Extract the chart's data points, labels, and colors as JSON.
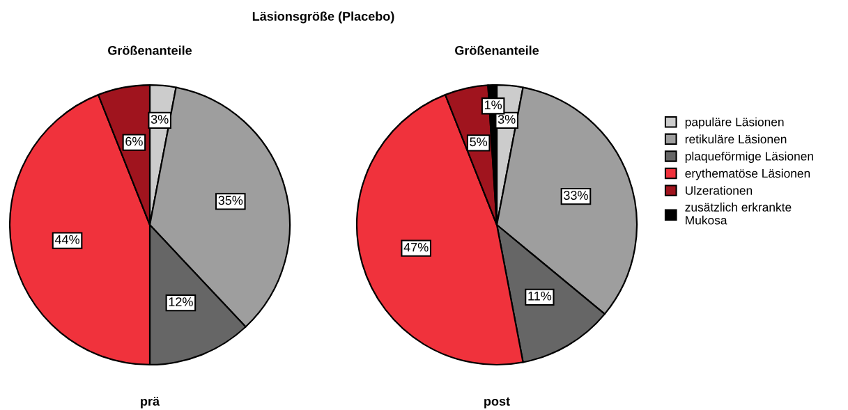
{
  "chart_data": [
    {
      "type": "pie",
      "title": "Läsionsgröße (Placebo)",
      "subtitle": "Größenanteile",
      "xlabel": "prä",
      "categories": [
        null,
        null,
        null,
        null,
        null
      ],
      "values": [
        3,
        35,
        12,
        44,
        6
      ],
      "value_labels": [
        "3%",
        "35%",
        "12%",
        "44%",
        "6%"
      ],
      "colors": [
        "#cccccc",
        "#9e9e9e",
        "#666666",
        "#f0323c",
        "#a0141e"
      ]
    },
    {
      "type": "pie",
      "subtitle": "Größenanteile",
      "xlabel": "post",
      "categories": [
        "papuläre Läsionen",
        "retikuläre Läsionen",
        "plaqueförmige Läsionen",
        "erythematöse Läsionen",
        "Ulzerationen",
        "zusätzlich erkrankte Mukosa"
      ],
      "values": [
        3,
        33,
        11,
        47,
        5,
        1
      ],
      "value_labels": [
        "3%",
        "33%",
        "11%",
        "47%",
        "5%",
        "1%"
      ],
      "colors": [
        "#cccccc",
        "#9e9e9e",
        "#666666",
        "#f0323c",
        "#a0141e",
        "#000000"
      ],
      "legend": "right"
    }
  ]
}
